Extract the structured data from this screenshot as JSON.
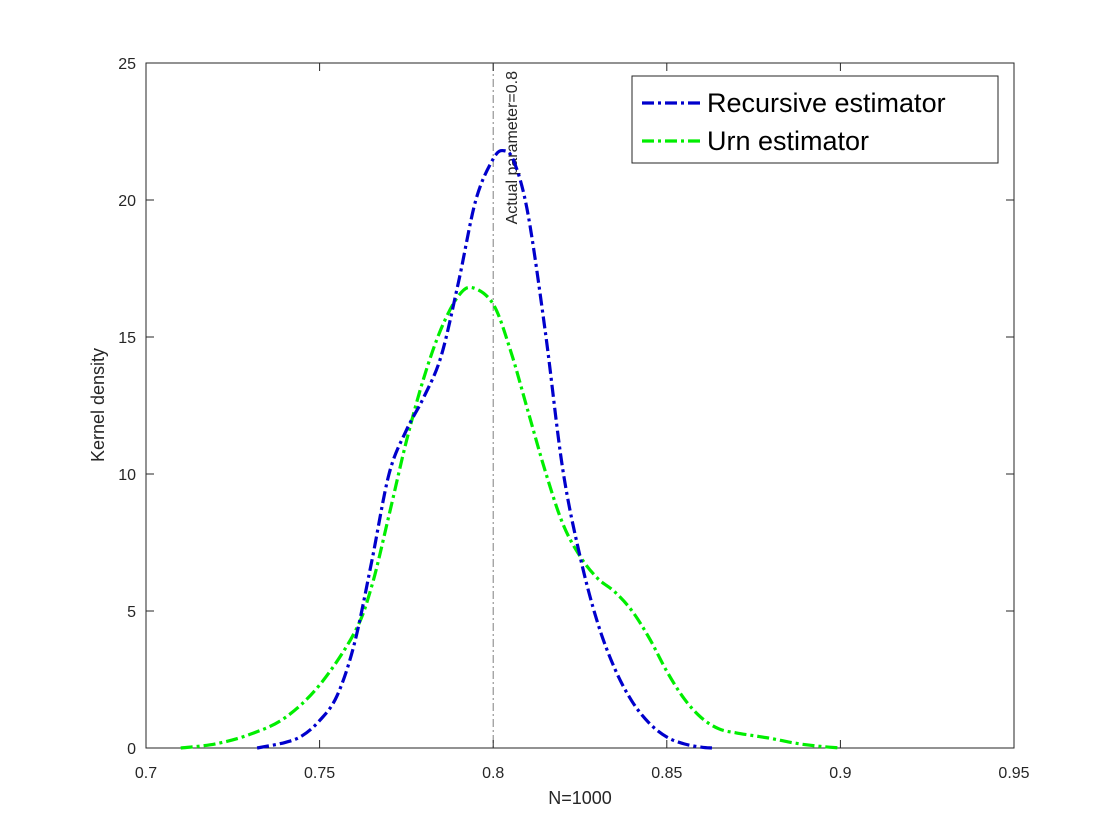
{
  "chart_data": {
    "type": "line",
    "title": "",
    "xlabel": "N=1000",
    "ylabel": "Kernel density",
    "xlim": [
      0.7,
      0.95
    ],
    "ylim": [
      0,
      25
    ],
    "xticks": [
      0.7,
      0.75,
      0.8,
      0.85,
      0.9,
      0.95
    ],
    "xtick_labels": [
      "0.7",
      "0.75",
      "0.8",
      "0.85",
      "0.9",
      "0.95"
    ],
    "yticks": [
      0,
      5,
      10,
      15,
      20,
      25
    ],
    "ytick_labels": [
      "0",
      "5",
      "10",
      "15",
      "20",
      "25"
    ],
    "grid": false,
    "legend_position": "top-right",
    "reference_line": {
      "x": 0.8,
      "label": "Actual parameter=0.8",
      "color": "#7f7f7f"
    },
    "series": [
      {
        "name": "Recursive estimator",
        "color": "#0000cc",
        "x": [
          0.732,
          0.74,
          0.745,
          0.75,
          0.755,
          0.76,
          0.765,
          0.77,
          0.775,
          0.78,
          0.785,
          0.79,
          0.795,
          0.8,
          0.803,
          0.806,
          0.81,
          0.815,
          0.82,
          0.825,
          0.83,
          0.835,
          0.84,
          0.845,
          0.85,
          0.855,
          0.86,
          0.863
        ],
        "y": [
          0.0,
          0.2,
          0.45,
          1.0,
          1.9,
          3.8,
          6.8,
          10.0,
          11.6,
          12.8,
          14.3,
          17.0,
          20.0,
          21.5,
          21.8,
          21.4,
          19.5,
          15.2,
          10.2,
          7.0,
          4.6,
          2.9,
          1.7,
          0.9,
          0.4,
          0.15,
          0.03,
          0.0
        ]
      },
      {
        "name": "Urn estimator",
        "color": "#00ee00",
        "x": [
          0.71,
          0.72,
          0.73,
          0.74,
          0.75,
          0.76,
          0.765,
          0.77,
          0.775,
          0.78,
          0.785,
          0.79,
          0.794,
          0.8,
          0.805,
          0.81,
          0.815,
          0.82,
          0.825,
          0.83,
          0.835,
          0.84,
          0.845,
          0.85,
          0.855,
          0.86,
          0.865,
          0.87,
          0.875,
          0.88,
          0.885,
          0.89,
          0.895,
          0.9
        ],
        "y": [
          0.0,
          0.15,
          0.5,
          1.1,
          2.3,
          4.2,
          5.9,
          8.5,
          11.2,
          13.5,
          15.3,
          16.5,
          16.8,
          16.2,
          14.5,
          12.3,
          10.1,
          8.2,
          7.0,
          6.2,
          5.7,
          5.0,
          4.0,
          2.8,
          1.8,
          1.1,
          0.7,
          0.55,
          0.45,
          0.35,
          0.22,
          0.12,
          0.05,
          0.0
        ]
      }
    ]
  }
}
